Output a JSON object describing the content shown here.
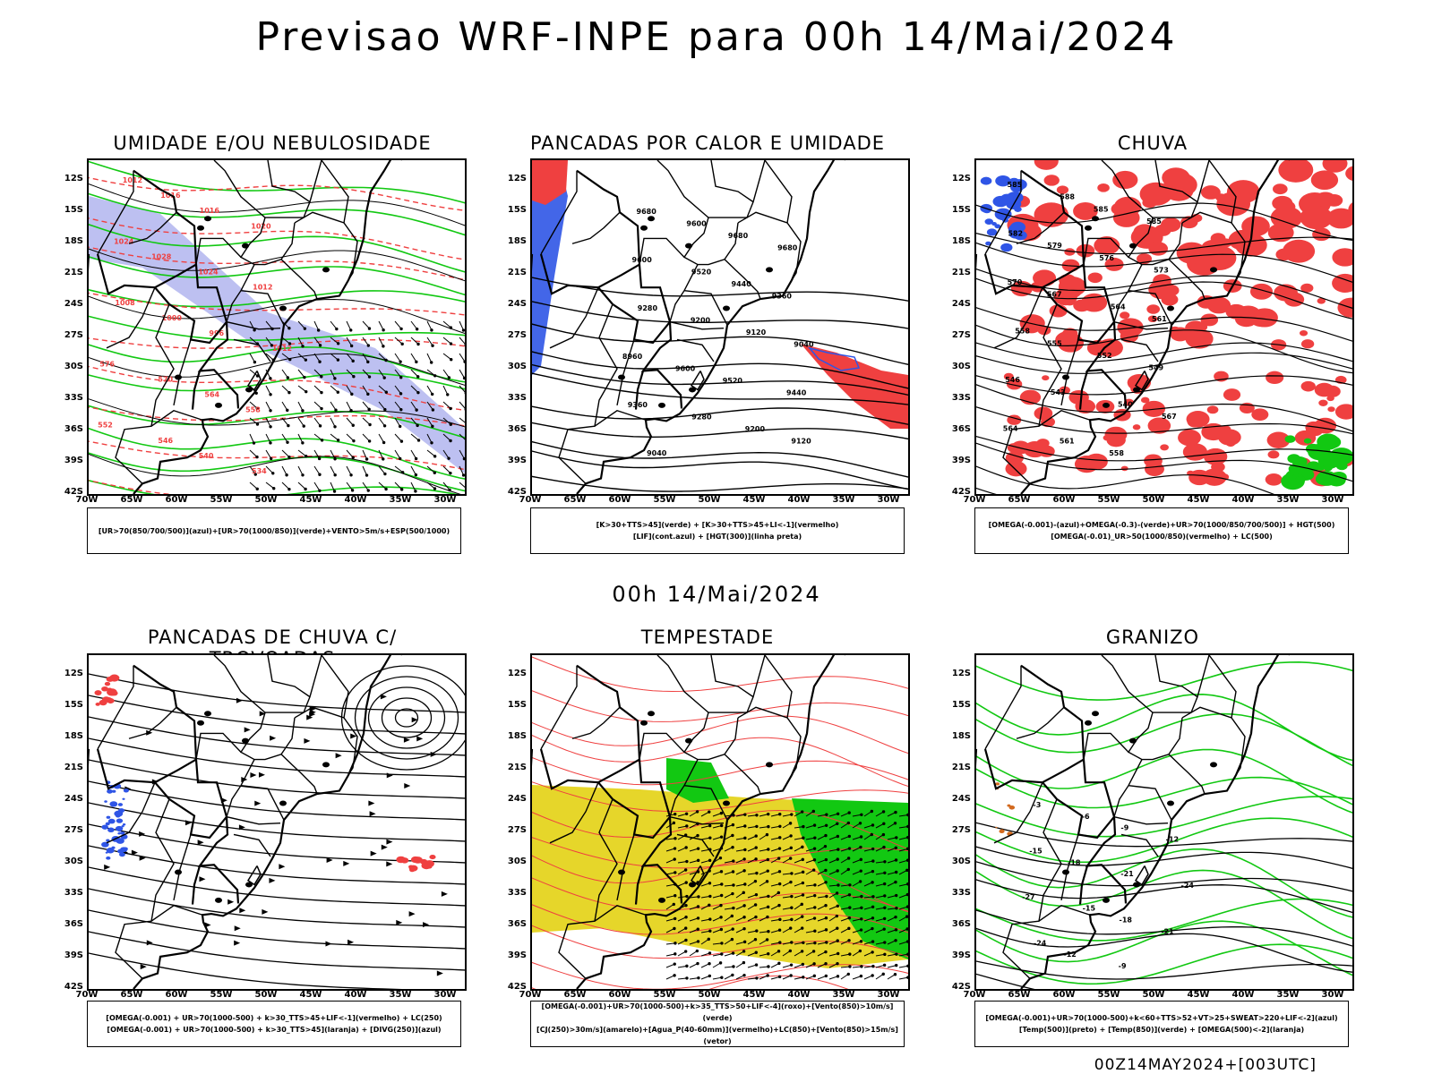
{
  "header": {
    "title": "Previsao WRF-INPE  para 00h 14/Mai/2024"
  },
  "middle": {
    "title": "00h 14/Mai/2024"
  },
  "footer": {
    "stamp": "00Z14MAY2024+[003UTC]"
  },
  "axes": {
    "lat_labels": [
      "12S",
      "15S",
      "18S",
      "21S",
      "24S",
      "27S",
      "30S",
      "33S",
      "36S",
      "39S",
      "42S"
    ],
    "lon_labels": [
      "70W",
      "65W",
      "60W",
      "55W",
      "50W",
      "45W",
      "40W",
      "35W",
      "30W"
    ]
  },
  "colors": {
    "red": "#ef4040",
    "green": "#12c812",
    "blue": "#2f55e6",
    "yellow": "#e6d62a",
    "lavender": "#b6b9ef",
    "black": "#000000"
  },
  "panels": [
    {
      "title": "UMIDADE E/OU NEBULOSIDADE",
      "legend": [
        "[UR>70(850/700/500)](azul)+[UR>70(1000/850)](verde)+VENTO>5m/s+ESP(500/1000)"
      ],
      "contour_labels": [
        "1012",
        "1016",
        "1016",
        "1020",
        "1024",
        "1028",
        "1024",
        "1012",
        "1008",
        "1000",
        "996",
        "1012",
        "576",
        "570",
        "564",
        "558",
        "552",
        "546",
        "540",
        "534"
      ]
    },
    {
      "title": "PANCADAS POR CALOR E UMIDADE",
      "legend": [
        "[K>30+TTS>45](verde) + [K>30+TTS>45+LI<-1](vermelho)",
        "[LIF](cont.azul) + [HGT(300)](linha preta)"
      ],
      "contour_labels": [
        "9680",
        "9600",
        "9680",
        "9680",
        "9600",
        "9520",
        "9440",
        "9360",
        "9280",
        "9200",
        "9120",
        "9040",
        "8960",
        "9600",
        "9520",
        "9440",
        "9360",
        "9280",
        "9200",
        "9120",
        "9040"
      ]
    },
    {
      "title": "CHUVA",
      "legend": [
        "[OMEGA(-0.001)-(azul)+OMEGA(-0.3)-(verde)+UR>70(1000/850/700/500)] + HGT(500)",
        "[OMEGA(-0.01)_UR>50(1000/850)(vermelho) + LC(500)"
      ],
      "contour_labels": [
        "585",
        "588",
        "585",
        "585",
        "582",
        "579",
        "576",
        "573",
        "570",
        "567",
        "564",
        "561",
        "558",
        "555",
        "552",
        "549",
        "546",
        "543",
        "540",
        "567",
        "564",
        "561",
        "558"
      ]
    },
    {
      "title": "PANCADAS DE CHUVA C/ TROVOADAS",
      "legend": [
        "[OMEGA(-0.001) + UR>70(1000-500) + k>30_TTS>45+LIF<-1](vermelho) + LC(250)",
        "[OMEGA(-0.001) + UR>70(1000-500) + k>30_TTS>45](laranja) + [DIVG(250)](azul)"
      ],
      "contour_labels": []
    },
    {
      "title": "TEMPESTADE",
      "legend": [
        "[OMEGA(-0.001)+UR>70(1000-500)+k>35_TTS>50+LIF<-4](roxo)+[Vento(850)>10m/s](verde)",
        "[CJ(250)>30m/s](amarelo)+[Agua_P(40-60mm)](vermelho)+LC(850)+[Vento(850)>15m/s](vetor)"
      ],
      "contour_labels": []
    },
    {
      "title": "GRANIZO",
      "legend": [
        "[OMEGA(-0.001)+UR>70(1000-500)+k<60+TTS>52+VT>25+SWEAT>220+LIF<-2](azul)",
        "[Temp(500)](preto) + [Temp(850)](verde) + [OMEGA(500)<-2](laranja)"
      ],
      "contour_labels": [
        "-3",
        "-6",
        "-9",
        "-12",
        "-15",
        "-18",
        "-21",
        "-24",
        "-27",
        "-15",
        "-18",
        "-21",
        "-24",
        "-12",
        "-9"
      ]
    }
  ]
}
